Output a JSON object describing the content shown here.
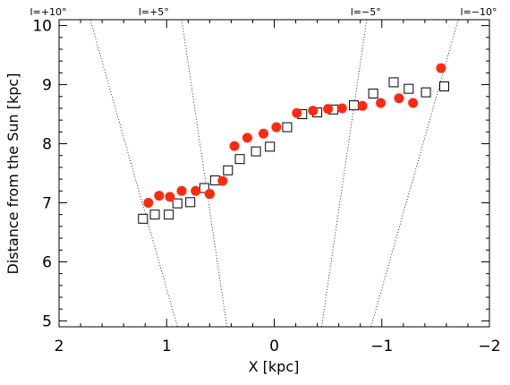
{
  "chart_data": {
    "type": "scatter",
    "title": "",
    "xlabel": "X [kpc]",
    "ylabel": "Distance from the Sun [kpc]",
    "xlim": [
      2,
      -2
    ],
    "ylim": [
      4.9,
      10.1
    ],
    "x_ticks": [
      2,
      1,
      0,
      -1,
      -2
    ],
    "y_ticks": [
      5,
      6,
      7,
      8,
      9,
      10
    ],
    "x_tick_labels": [
      "2",
      "1",
      "0",
      "−1",
      "−2"
    ],
    "y_tick_labels": [
      "5",
      "6",
      "7",
      "8",
      "9",
      "10"
    ],
    "grid": false,
    "series": [
      {
        "marker": "filled-circle",
        "color": "#ff2a10",
        "points": [
          {
            "x": 1.17,
            "y": 7.0
          },
          {
            "x": 1.07,
            "y": 7.12
          },
          {
            "x": 0.97,
            "y": 7.1
          },
          {
            "x": 0.86,
            "y": 7.2
          },
          {
            "x": 0.73,
            "y": 7.2
          },
          {
            "x": 0.6,
            "y": 7.15
          },
          {
            "x": 0.48,
            "y": 7.37
          },
          {
            "x": 0.6,
            "y": 7.15
          },
          {
            "x": 0.37,
            "y": 7.96
          },
          {
            "x": 0.25,
            "y": 8.1
          },
          {
            "x": 0.1,
            "y": 8.17
          },
          {
            "x": -0.02,
            "y": 8.28
          },
          {
            "x": -0.21,
            "y": 8.52
          },
          {
            "x": -0.36,
            "y": 8.56
          },
          {
            "x": -0.5,
            "y": 8.59
          },
          {
            "x": -0.63,
            "y": 8.6
          },
          {
            "x": -0.82,
            "y": 8.64
          },
          {
            "x": -0.99,
            "y": 8.69
          },
          {
            "x": -1.16,
            "y": 8.77
          },
          {
            "x": -1.29,
            "y": 8.69
          },
          {
            "x": -1.55,
            "y": 9.28
          }
        ]
      },
      {
        "marker": "open-square",
        "color": "#000000",
        "points": [
          {
            "x": 1.22,
            "y": 6.73
          },
          {
            "x": 1.11,
            "y": 6.8
          },
          {
            "x": 0.98,
            "y": 6.8
          },
          {
            "x": 0.9,
            "y": 6.99
          },
          {
            "x": 0.78,
            "y": 7.01
          },
          {
            "x": 0.65,
            "y": 7.25
          },
          {
            "x": 0.55,
            "y": 7.38
          },
          {
            "x": 0.43,
            "y": 7.55
          },
          {
            "x": 0.32,
            "y": 7.74
          },
          {
            "x": 0.17,
            "y": 7.87
          },
          {
            "x": 0.04,
            "y": 7.95
          },
          {
            "x": -0.12,
            "y": 8.28
          },
          {
            "x": -0.26,
            "y": 8.5
          },
          {
            "x": -0.4,
            "y": 8.53
          },
          {
            "x": -0.55,
            "y": 8.58
          },
          {
            "x": -0.74,
            "y": 8.65
          },
          {
            "x": -0.92,
            "y": 8.85
          },
          {
            "x": -1.11,
            "y": 9.04
          },
          {
            "x": -1.25,
            "y": 8.93
          },
          {
            "x": -1.41,
            "y": 8.87
          },
          {
            "x": -1.58,
            "y": 8.97
          }
        ]
      }
    ],
    "sightlines": [
      {
        "label": "l=+10°",
        "x_top": 1.71,
        "x_bottom": 0.9
      },
      {
        "label": "l=+5°",
        "x_top": 0.86,
        "x_bottom": 0.44
      },
      {
        "label": "l=−5°",
        "x_top": -0.86,
        "x_bottom": -0.44
      },
      {
        "label": "l=−10°",
        "x_top": -1.71,
        "x_bottom": -0.9
      }
    ],
    "los_label_x": [
      2.1,
      1.12,
      -0.85,
      -1.9
    ]
  }
}
